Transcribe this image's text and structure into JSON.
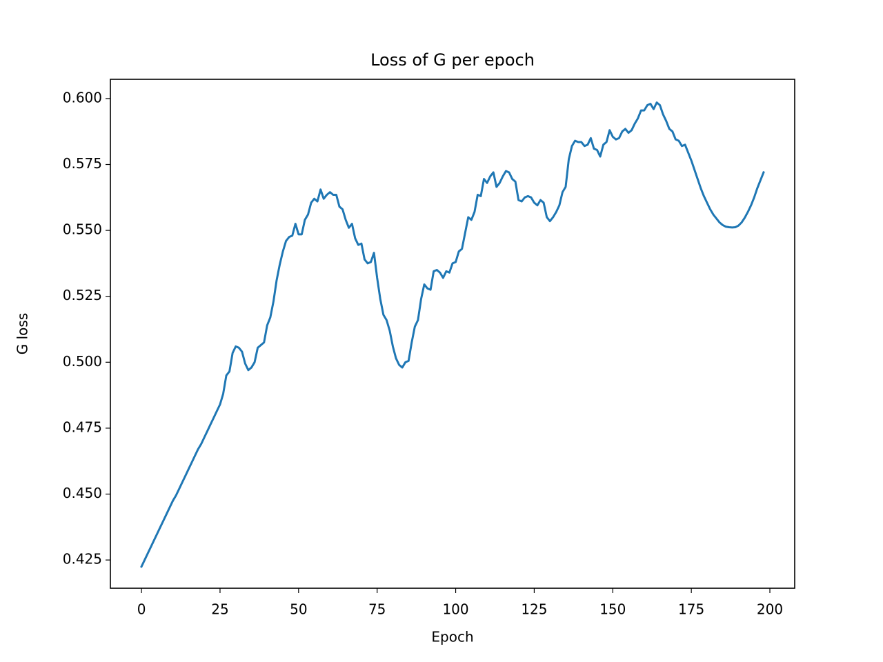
{
  "chart_data": {
    "type": "line",
    "title": "Loss of G per epoch",
    "x_label": "Epoch",
    "y_label": "G loss",
    "color": "#1f77b4",
    "grid": false,
    "x": [
      0,
      1,
      2,
      3,
      4,
      5,
      6,
      7,
      8,
      9,
      10,
      11,
      12,
      13,
      14,
      15,
      16,
      17,
      18,
      19,
      20,
      21,
      22,
      23,
      24,
      25,
      26,
      27,
      28,
      29,
      30,
      31,
      32,
      33,
      34,
      35,
      36,
      37,
      38,
      39,
      40,
      41,
      42,
      43,
      44,
      45,
      46,
      47,
      48,
      49,
      50,
      51,
      52,
      53,
      54,
      55,
      56,
      57,
      58,
      59,
      60,
      61,
      62,
      63,
      64,
      65,
      66,
      67,
      68,
      69,
      70,
      71,
      72,
      73,
      74,
      75,
      76,
      77,
      78,
      79,
      80,
      81,
      82,
      83,
      84,
      85,
      86,
      87,
      88,
      89,
      90,
      91,
      92,
      93,
      94,
      95,
      96,
      97,
      98,
      99,
      100,
      101,
      102,
      103,
      104,
      105,
      106,
      107,
      108,
      109,
      110,
      111,
      112,
      113,
      114,
      115,
      116,
      117,
      118,
      119,
      120,
      121,
      122,
      123,
      124,
      125,
      126,
      127,
      128,
      129,
      130,
      131,
      132,
      133,
      134,
      135,
      136,
      137,
      138,
      139,
      140,
      141,
      142,
      143,
      144,
      145,
      146,
      147,
      148,
      149,
      150,
      151,
      152,
      153,
      154,
      155,
      156,
      157,
      158,
      159,
      160,
      161,
      162,
      163,
      164,
      165,
      166,
      167,
      168,
      169,
      170,
      171,
      172,
      173,
      174,
      175,
      176,
      177,
      178,
      179,
      180,
      181,
      182,
      183,
      184,
      185,
      186,
      187,
      188,
      189,
      190,
      191,
      192,
      193,
      194,
      195,
      196,
      197,
      198
    ],
    "values": [
      0.4225,
      0.425,
      0.4275,
      0.43,
      0.4325,
      0.435,
      0.4375,
      0.44,
      0.4425,
      0.445,
      0.4475,
      0.4495,
      0.452,
      0.4545,
      0.457,
      0.4595,
      0.462,
      0.4645,
      0.467,
      0.469,
      0.4715,
      0.474,
      0.4765,
      0.479,
      0.4815,
      0.484,
      0.488,
      0.495,
      0.4965,
      0.5035,
      0.506,
      0.5055,
      0.504,
      0.4995,
      0.497,
      0.498,
      0.5,
      0.5055,
      0.5065,
      0.5075,
      0.514,
      0.517,
      0.523,
      0.531,
      0.537,
      0.542,
      0.546,
      0.5475,
      0.548,
      0.5525,
      0.5485,
      0.5485,
      0.554,
      0.556,
      0.5605,
      0.562,
      0.561,
      0.5655,
      0.562,
      0.5635,
      0.5645,
      0.5635,
      0.5635,
      0.559,
      0.558,
      0.554,
      0.551,
      0.5525,
      0.547,
      0.5445,
      0.545,
      0.539,
      0.5375,
      0.538,
      0.5415,
      0.532,
      0.524,
      0.518,
      0.516,
      0.512,
      0.506,
      0.5015,
      0.499,
      0.498,
      0.5,
      0.5005,
      0.5075,
      0.5135,
      0.516,
      0.524,
      0.5295,
      0.528,
      0.5275,
      0.5345,
      0.535,
      0.534,
      0.532,
      0.5345,
      0.534,
      0.5375,
      0.538,
      0.542,
      0.543,
      0.549,
      0.555,
      0.554,
      0.557,
      0.5635,
      0.563,
      0.5695,
      0.568,
      0.5705,
      0.572,
      0.5665,
      0.568,
      0.5705,
      0.5725,
      0.572,
      0.5695,
      0.5685,
      0.5615,
      0.561,
      0.5625,
      0.563,
      0.5625,
      0.5605,
      0.5595,
      0.5615,
      0.5605,
      0.555,
      0.5535,
      0.555,
      0.557,
      0.5595,
      0.5645,
      0.5665,
      0.577,
      0.582,
      0.584,
      0.5835,
      0.5835,
      0.582,
      0.5825,
      0.585,
      0.581,
      0.5805,
      0.578,
      0.5825,
      0.5835,
      0.588,
      0.5855,
      0.5845,
      0.585,
      0.5875,
      0.5885,
      0.587,
      0.588,
      0.5905,
      0.5925,
      0.5955,
      0.5955,
      0.5975,
      0.598,
      0.596,
      0.5985,
      0.5975,
      0.594,
      0.5915,
      0.5885,
      0.5875,
      0.5845,
      0.584,
      0.582,
      0.5825,
      0.5795,
      0.5765,
      0.573,
      0.5695,
      0.566,
      0.563,
      0.5605,
      0.558,
      0.556,
      0.5545,
      0.553,
      0.552,
      0.5514,
      0.5512,
      0.5511,
      0.5512,
      0.5518,
      0.553,
      0.5548,
      0.557,
      0.5595,
      0.5625,
      0.566,
      0.569,
      0.572
    ],
    "xlim": [
      -9.9,
      207.9
    ],
    "xticks": [
      0,
      25,
      50,
      75,
      100,
      125,
      150,
      175,
      200
    ],
    "ylim": [
      0.4143,
      0.6073
    ],
    "yticks": [
      0.425,
      {
        "value": 0.45,
        "label": "0.450"
      },
      0.475,
      {
        "value": 0.5,
        "label": "0.500"
      },
      0.525,
      {
        "value": 0.55,
        "label": "0.550"
      },
      0.575,
      {
        "value": 0.6,
        "label": "0.600"
      }
    ]
  }
}
